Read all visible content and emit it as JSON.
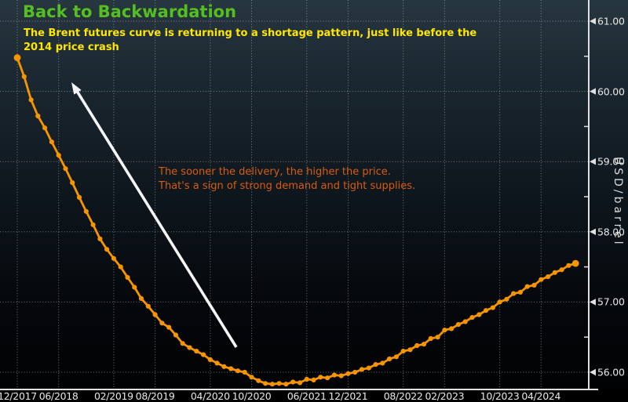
{
  "header": {
    "title": "Back to Backwardation",
    "subtitle_line1": "The Brent futures curve is returning to a shortage pattern, just like before the",
    "subtitle_line2": "2014 price crash"
  },
  "annotation": {
    "line1": "The sooner the delivery, the higher the price.",
    "line2": "That's a sign of strong demand and tight supplies."
  },
  "colors": {
    "title_green": "#55bf22",
    "subtitle_yellow": "#ffe600",
    "annotation_orange": "#d85c0e",
    "curve_orange": "#f79500",
    "axis_white": "#e0e0e0",
    "grid_gray": "#c6cdd2",
    "arrow_white": "#f5f5f5"
  },
  "chart_data": {
    "type": "line",
    "title": "Back to Backwardation",
    "xlabel": "",
    "ylabel": "USD/barrel",
    "ylim": [
      55.75,
      61.3
    ],
    "grid": "dotted, major gridlines both axes",
    "legend_position": "none",
    "x_unit": "monthly futures contract delivery month",
    "x_start": "12/2017",
    "x_end": "09/2024",
    "x_tick_labels": [
      "12/2017",
      "06/2018",
      "02/2019",
      "08/2019",
      "04/2020",
      "10/2020",
      "06/2021",
      "12/2021",
      "08/2022",
      "02/2023",
      "10/2023",
      "04/2024"
    ],
    "x_tick_month_indices": [
      0,
      6,
      14,
      20,
      28,
      34,
      42,
      48,
      56,
      62,
      70,
      76
    ],
    "y_tick_labels": [
      "61.00",
      "60.00",
      "59.00",
      "58.00",
      "57.00",
      "56.00"
    ],
    "y_tick_values": [
      61,
      60,
      59,
      58,
      57,
      56
    ],
    "y_minor_tick_values": [
      60.5,
      59.5,
      58.5,
      57.5,
      56.5
    ],
    "series": [
      {
        "name": "Brent futures curve (price by delivery month)",
        "marker": "circle",
        "values": [
          60.48,
          60.21,
          59.88,
          59.65,
          59.48,
          59.28,
          59.09,
          58.9,
          58.7,
          58.49,
          58.29,
          58.1,
          57.9,
          57.75,
          57.62,
          57.5,
          57.35,
          57.21,
          57.05,
          56.94,
          56.82,
          56.7,
          56.64,
          56.53,
          56.41,
          56.35,
          56.3,
          56.25,
          56.18,
          56.13,
          56.08,
          56.05,
          56.02,
          56.0,
          55.93,
          55.88,
          55.84,
          55.83,
          55.84,
          55.83,
          55.86,
          55.85,
          55.9,
          55.89,
          55.93,
          55.92,
          55.96,
          55.95,
          55.98,
          56.0,
          56.04,
          56.06,
          56.11,
          56.13,
          56.19,
          56.22,
          56.3,
          56.32,
          56.38,
          56.4,
          56.48,
          56.5,
          56.6,
          56.62,
          56.68,
          56.72,
          56.78,
          56.82,
          56.88,
          56.92,
          57.0,
          57.04,
          57.12,
          57.14,
          57.22,
          57.24,
          57.32,
          57.36,
          57.42,
          57.46,
          57.52,
          57.55
        ]
      }
    ]
  }
}
